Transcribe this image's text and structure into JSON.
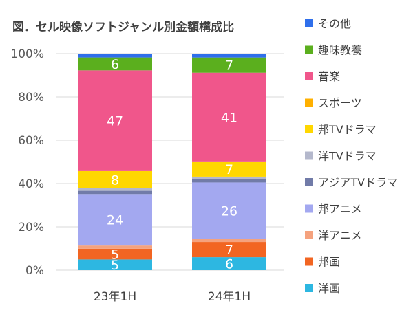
{
  "chart_data": {
    "type": "bar",
    "stacked": true,
    "title": "図．セル映像ソフトジャンル別金額構成比",
    "categories": [
      "23年1H",
      "24年1H"
    ],
    "ylim": [
      0,
      100
    ],
    "yticks": [
      "0%",
      "20%",
      "40%",
      "60%",
      "80%",
      "100%"
    ],
    "grid": true,
    "legend_position": "right",
    "series": [
      {
        "name": "洋画",
        "color": "#2DB7E1",
        "values": [
          5,
          6
        ],
        "labels": [
          "5",
          "6"
        ]
      },
      {
        "name": "邦画",
        "color": "#F26522",
        "values": [
          5,
          7
        ],
        "labels": [
          "5",
          "7"
        ]
      },
      {
        "name": "洋アニメ",
        "color": "#F5A27E",
        "values": [
          1.5,
          1.5
        ],
        "labels": [
          "",
          ""
        ]
      },
      {
        "name": "邦アニメ",
        "color": "#A3A8F0",
        "values": [
          24,
          26
        ],
        "labels": [
          "24",
          "26"
        ]
      },
      {
        "name": "アジアTVドラマ",
        "color": "#717BA8",
        "values": [
          1.5,
          1.5
        ],
        "labels": [
          "",
          ""
        ]
      },
      {
        "name": "洋TVドラマ",
        "color": "#B4B8CC",
        "values": [
          1.2,
          1.2
        ],
        "labels": [
          "",
          ""
        ]
      },
      {
        "name": "邦TVドラマ",
        "color": "#FFD700",
        "values": [
          8,
          7
        ],
        "labels": [
          "8",
          "7"
        ]
      },
      {
        "name": "スポーツ",
        "color": "#FFB000",
        "values": [
          0,
          0
        ],
        "labels": [
          "",
          ""
        ]
      },
      {
        "name": "音楽",
        "color": "#F0568B",
        "values": [
          47,
          41
        ],
        "labels": [
          "47",
          "41"
        ]
      },
      {
        "name": "趣味教養",
        "color": "#5BAF1E",
        "values": [
          6,
          7
        ],
        "labels": [
          "6",
          "7"
        ]
      },
      {
        "name": "その他",
        "color": "#2F6FEB",
        "values": [
          1.8,
          1.8
        ],
        "labels": [
          "",
          ""
        ]
      }
    ],
    "legend_order": [
      "その他",
      "趣味教養",
      "音楽",
      "スポーツ",
      "邦TVドラマ",
      "洋TVドラマ",
      "アジアTVドラマ",
      "邦アニメ",
      "洋アニメ",
      "邦画",
      "洋画"
    ]
  }
}
